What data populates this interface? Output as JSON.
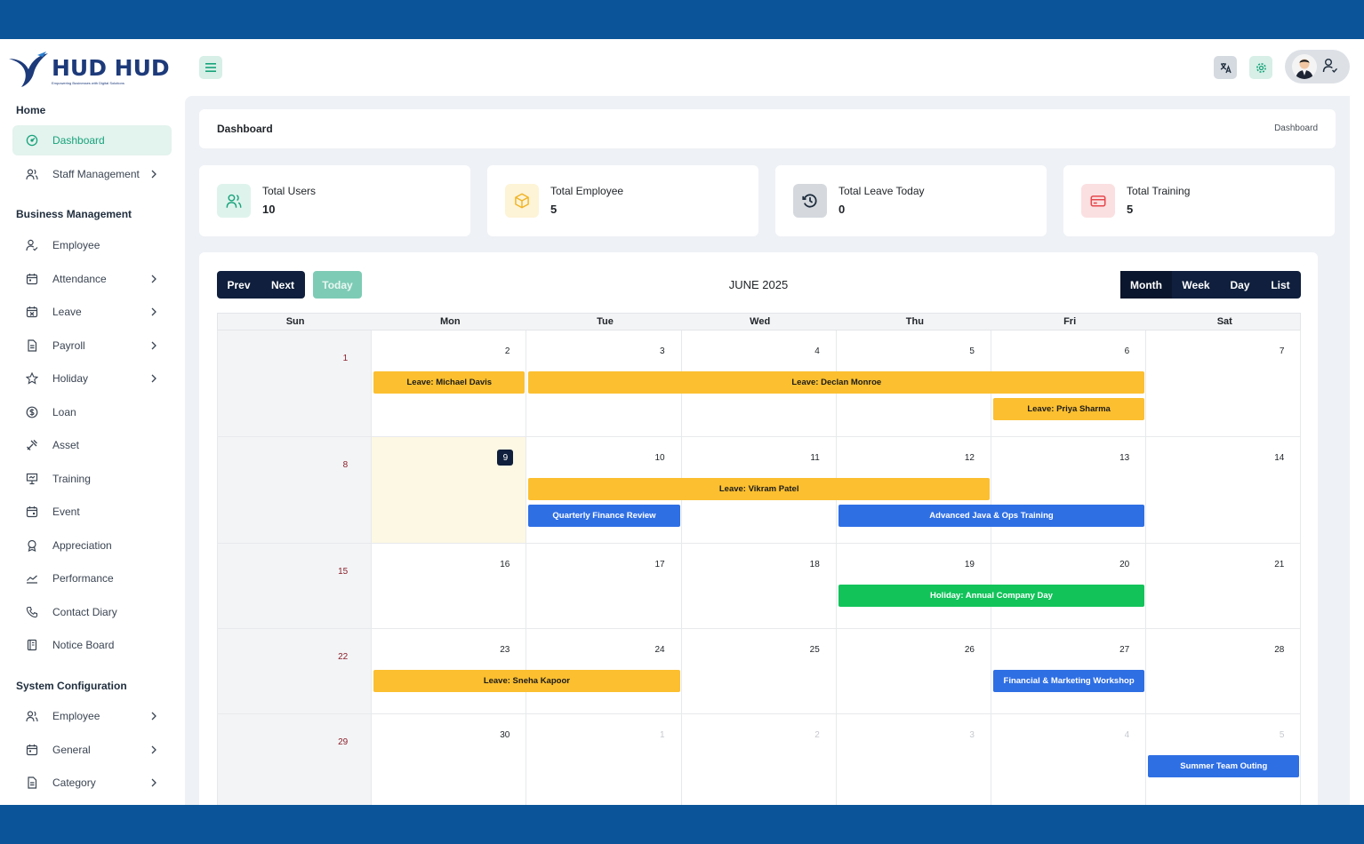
{
  "brand": {
    "name": "HUD HUD",
    "tagline": "Empowering Businesses with Digital Solutions"
  },
  "sidebar": {
    "sections": [
      {
        "title": "Home"
      },
      {
        "title": "Business Management"
      },
      {
        "title": "System Configuration"
      }
    ],
    "items": [
      {
        "label": "Dashboard",
        "icon": "dashboard-icon"
      },
      {
        "label": "Staff Management",
        "icon": "users-icon"
      },
      {
        "label": "Employee",
        "icon": "user-check-icon"
      },
      {
        "label": "Attendance",
        "icon": "calendar-icon"
      },
      {
        "label": "Leave",
        "icon": "calendar-x-icon"
      },
      {
        "label": "Payroll",
        "icon": "file-icon"
      },
      {
        "label": "Holiday",
        "icon": "star-icon"
      },
      {
        "label": "Loan",
        "icon": "dollar-icon"
      },
      {
        "label": "Asset",
        "icon": "tools-icon"
      },
      {
        "label": "Training",
        "icon": "presentation-icon"
      },
      {
        "label": "Event",
        "icon": "calendar-event-icon"
      },
      {
        "label": "Appreciation",
        "icon": "award-icon"
      },
      {
        "label": "Performance",
        "icon": "chart-line-icon"
      },
      {
        "label": "Contact Diary",
        "icon": "phone-icon"
      },
      {
        "label": "Notice Board",
        "icon": "notebook-icon"
      },
      {
        "label": "Employee",
        "icon": "users-icon"
      },
      {
        "label": "General",
        "icon": "calendar-icon"
      },
      {
        "label": "Category",
        "icon": "file-icon"
      }
    ]
  },
  "breadcrumb": {
    "title": "Dashboard",
    "current": "Dashboard"
  },
  "stats": [
    {
      "label": "Total Users",
      "value": "10",
      "icon": "users-icon",
      "color": "#17a37a",
      "bg": "#def3ec"
    },
    {
      "label": "Total Employee",
      "value": "5",
      "icon": "box-icon",
      "color": "#f0b323",
      "bg": "#fdf3d6"
    },
    {
      "label": "Total Leave Today",
      "value": "0",
      "icon": "history-icon",
      "color": "#1f2d3d",
      "bg": "#d5d9de"
    },
    {
      "label": "Total Training",
      "value": "5",
      "icon": "credit-card-icon",
      "color": "#e5484d",
      "bg": "#fbe0e1"
    }
  ],
  "calendar": {
    "prev_label": "Prev",
    "next_label": "Next",
    "today_label": "Today",
    "title": "JUNE 2025",
    "views": [
      "Month",
      "Week",
      "Day",
      "List"
    ],
    "weekdays": [
      "Sun",
      "Mon",
      "Tue",
      "Wed",
      "Thu",
      "Fri",
      "Sat"
    ],
    "weeks": [
      [
        "1",
        "2",
        "3",
        "4",
        "5",
        "6",
        "7"
      ],
      [
        "8",
        "9",
        "10",
        "11",
        "12",
        "13",
        "14"
      ],
      [
        "15",
        "16",
        "17",
        "18",
        "19",
        "20",
        "21"
      ],
      [
        "22",
        "23",
        "24",
        "25",
        "26",
        "27",
        "28"
      ],
      [
        "29",
        "30",
        "1",
        "2",
        "3",
        "4",
        "5"
      ]
    ],
    "today": "9",
    "events": [
      {
        "title": "Leave: Michael Davis",
        "type": "leave",
        "week": 0,
        "start": 1,
        "end": 1,
        "lane": 0
      },
      {
        "title": "Leave: Declan Monroe",
        "type": "leave",
        "week": 0,
        "start": 2,
        "end": 5,
        "lane": 0
      },
      {
        "title": "Leave: Priya Sharma",
        "type": "leave",
        "week": 0,
        "start": 5,
        "end": 5,
        "lane": 1
      },
      {
        "title": "Leave: Vikram Patel",
        "type": "leave",
        "week": 1,
        "start": 2,
        "end": 4,
        "lane": 0
      },
      {
        "title": "Quarterly Finance Review",
        "type": "training",
        "week": 1,
        "start": 2,
        "end": 2,
        "lane": 1
      },
      {
        "title": "Advanced Java & Ops Training",
        "type": "training",
        "week": 1,
        "start": 4,
        "end": 5,
        "lane": 1
      },
      {
        "title": "Holiday: Annual Company Day",
        "type": "holiday",
        "week": 2,
        "start": 4,
        "end": 5,
        "lane": 0
      },
      {
        "title": "Leave: Sneha Kapoor",
        "type": "leave",
        "week": 3,
        "start": 1,
        "end": 2,
        "lane": 0
      },
      {
        "title": "Financial & Marketing Workshop",
        "type": "training",
        "week": 3,
        "start": 5,
        "end": 5,
        "lane": 0
      },
      {
        "title": "Summer Team Outing",
        "type": "training",
        "week": 4,
        "start": 6,
        "end": 6,
        "lane": 0
      }
    ]
  }
}
